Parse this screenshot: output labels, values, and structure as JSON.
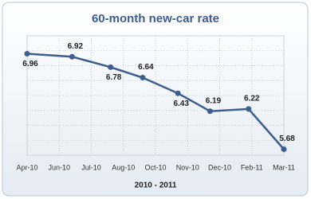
{
  "chart_data": {
    "type": "line",
    "title": "60-month new-car rate",
    "xlabel": "2010 - 2011",
    "x": [
      0,
      1.4,
      2.6,
      3.6,
      4.7,
      5.7,
      6.9,
      8
    ],
    "series": [
      {
        "name": "60-month new-car rate",
        "color": "#3d5e8e",
        "values": [
          6.96,
          6.92,
          6.78,
          6.64,
          6.43,
          6.19,
          6.22,
          5.68
        ]
      }
    ],
    "xlim": [
      0,
      8
    ],
    "xticks": [
      {
        "value": 0,
        "label": "Apr-10"
      },
      {
        "value": 1,
        "label": "Jun-10"
      },
      {
        "value": 2,
        "label": "Jul-10"
      },
      {
        "value": 3,
        "label": "Aug-10"
      },
      {
        "value": 4,
        "label": "Oct-10"
      },
      {
        "value": 5,
        "label": "Nov-10"
      },
      {
        "value": 6,
        "label": "Dec-10"
      },
      {
        "value": 7,
        "label": "Feb-11"
      },
      {
        "value": 8,
        "label": "Mar-11"
      }
    ],
    "ylim": [
      5.6,
      7.2
    ],
    "yticks": [
      5.6,
      5.8,
      6.0,
      6.2,
      6.4,
      6.6,
      6.8,
      7.0,
      7.2
    ],
    "grid": true
  }
}
